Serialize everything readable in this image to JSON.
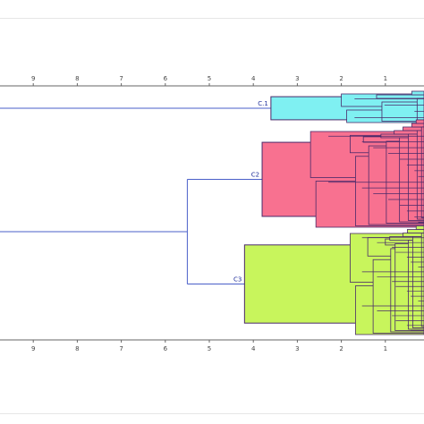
{
  "chart_data": {
    "type": "dendrogram",
    "orientation": "horizontal",
    "x_axis": {
      "ticks": [
        "9",
        "8",
        "7",
        "6",
        "5",
        "4",
        "3",
        "2",
        "1"
      ],
      "reversed": true
    },
    "root_merge_distance": 5.5,
    "clusters": [
      {
        "name": "C1",
        "label": "C.1",
        "color": "#7ff0f2",
        "merge_distance": 3.6,
        "leaf_count": 4,
        "inner_merges": [
          2.0,
          1.2,
          0.4
        ]
      },
      {
        "name": "C2",
        "label": "C2",
        "color": "#f87190",
        "merge_distance": 3.8,
        "leaf_count": 16,
        "inner_merges": [
          2.7,
          1.8,
          1.5,
          1.1,
          0.8,
          0.6,
          0.4,
          0.3
        ]
      },
      {
        "name": "C3",
        "label": "C3",
        "color": "#c8f55c",
        "merge_distance": 4.2,
        "leaf_count": 20,
        "inner_merges": [
          1.8,
          1.4,
          1.0,
          0.9,
          0.6,
          0.5,
          0.3
        ]
      }
    ],
    "colors": {
      "link": "#4a5fc9",
      "axis": "#666666"
    }
  }
}
